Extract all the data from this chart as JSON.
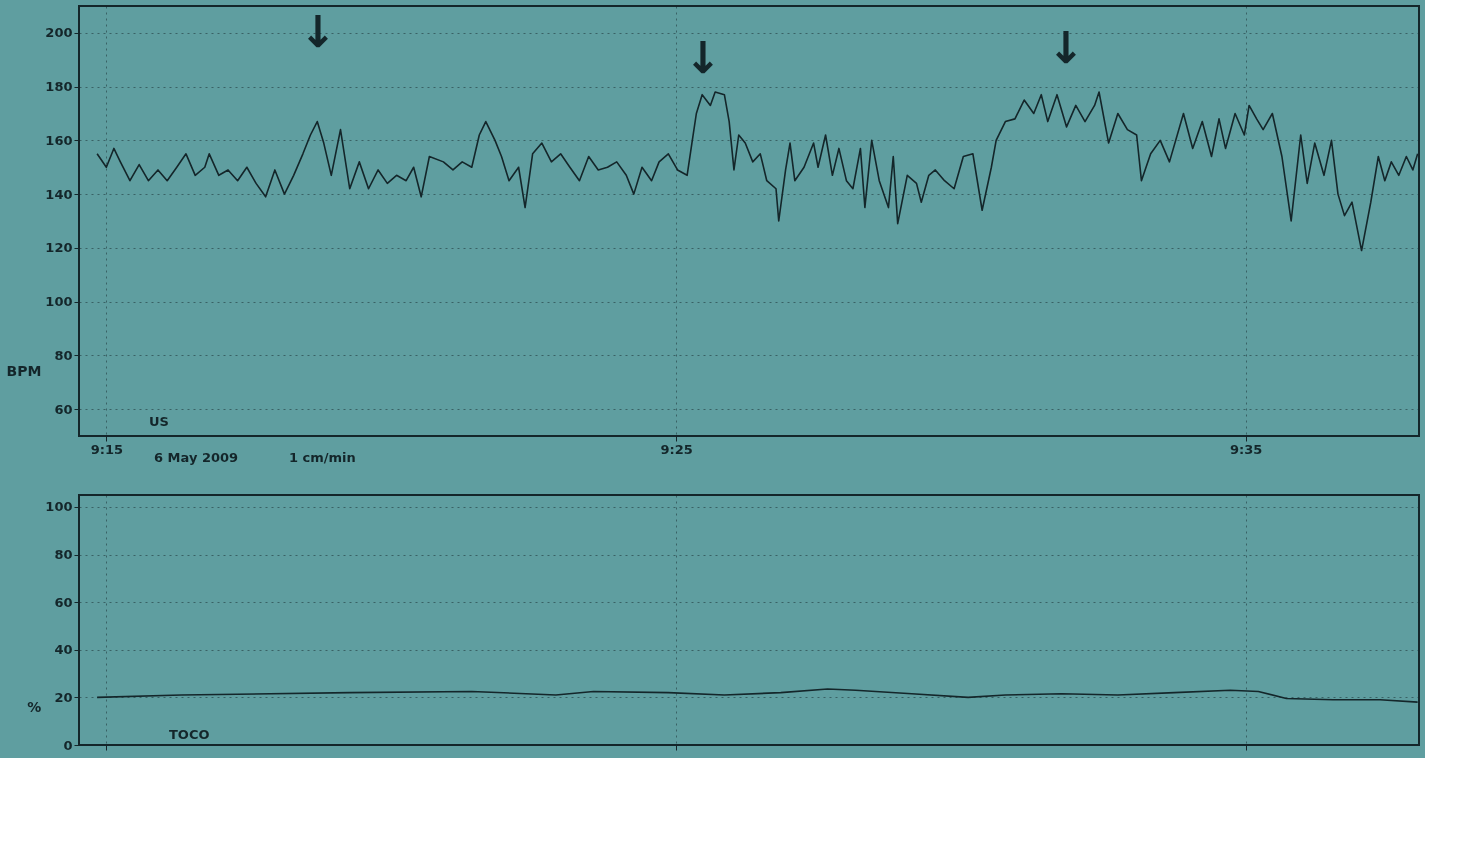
{
  "chart_data": [
    {
      "type": "line",
      "ylabel": "BPM",
      "xlim": [
        9.242,
        9.634
      ],
      "ylim": [
        50,
        210
      ],
      "xticks": [
        {
          "value": 9.25,
          "label": "9:15"
        },
        {
          "value": 9.4167,
          "label": "9:25"
        },
        {
          "value": 9.5833,
          "label": "9:35"
        }
      ],
      "yticks": [
        60,
        80,
        100,
        120,
        140,
        160,
        180,
        200
      ],
      "grid": true,
      "annotations": [
        "US",
        "6 May 2009",
        "1 cm/min",
        "↓",
        "↓",
        "↓"
      ],
      "series": [
        {
          "color": "#14262a",
          "x": [
            9.2473,
            9.25,
            9.2522,
            9.2541,
            9.2569,
            9.2596,
            9.2623,
            9.2651,
            9.2678,
            9.2706,
            9.2733,
            9.276,
            9.2788,
            9.2801,
            9.2829,
            9.2856,
            9.2884,
            9.2911,
            9.2938,
            9.2966,
            9.2993,
            9.3021,
            9.3048,
            9.3075,
            9.3097,
            9.3117,
            9.3136,
            9.3158,
            9.3185,
            9.3212,
            9.324,
            9.3267,
            9.3295,
            9.3322,
            9.3349,
            9.3377,
            9.3399,
            9.3421,
            9.3445,
            9.3486,
            9.3514,
            9.3541,
            9.3569,
            9.3591,
            9.361,
            9.3637,
            9.3656,
            9.3678,
            9.3706,
            9.3725,
            9.3747,
            9.3774,
            9.3802,
            9.3829,
            9.3856,
            9.3884,
            9.3911,
            9.3939,
            9.3966,
            9.3993,
            9.4021,
            9.4043,
            9.4067,
            9.4095,
            9.4117,
            9.4144,
            9.4171,
            9.4199,
            9.4213,
            9.4226,
            9.4243,
            9.4267,
            9.4281,
            9.4308,
            9.4322,
            9.4336,
            9.435,
            9.4369,
            9.4391,
            9.4413,
            9.4432,
            9.4459,
            9.4467,
            9.4487,
            9.45,
            9.4514,
            9.4541,
            9.4569,
            9.4582,
            9.4604,
            9.4624,
            9.4643,
            9.4665,
            9.4684,
            9.4706,
            9.4719,
            9.4739,
            9.4761,
            9.4788,
            9.4802,
            9.4815,
            9.4843,
            9.487,
            9.4884,
            9.4906,
            9.4925,
            9.4952,
            9.498,
            9.5007,
            9.5035,
            9.5062,
            9.5089,
            9.5103,
            9.513,
            9.5158,
            9.5185,
            9.5213,
            9.5235,
            9.5254,
            9.5281,
            9.5309,
            9.5336,
            9.5363,
            9.5391,
            9.5404,
            9.5432,
            9.5459,
            9.5487,
            9.5514,
            9.5528,
            9.5555,
            9.5583,
            9.561,
            9.5651,
            9.5678,
            9.5706,
            9.5733,
            9.5755,
            9.5774,
            9.5802,
            9.5829,
            9.5843,
            9.5865,
            9.5884,
            9.5911,
            9.5939,
            9.5966,
            9.5994,
            9.6013,
            9.6035,
            9.6062,
            9.6084,
            9.6103,
            9.6122,
            9.6144,
            9.6172,
            9.6199,
            9.6221,
            9.624,
            9.6259,
            9.6281,
            9.6303,
            9.6322,
            9.6336
          ],
          "values": [
            155,
            150,
            157,
            152,
            145,
            151,
            145,
            149,
            145,
            150,
            155,
            147,
            150,
            155,
            147,
            149,
            145,
            150,
            144,
            139,
            149,
            140,
            147,
            155,
            162,
            167,
            159,
            147,
            164,
            142,
            152,
            142,
            149,
            144,
            147,
            145,
            150,
            139,
            154,
            152,
            149,
            152,
            150,
            162,
            167,
            160,
            154,
            145,
            150,
            135,
            155,
            159,
            152,
            155,
            150,
            145,
            154,
            149,
            150,
            152,
            147,
            140,
            150,
            145,
            152,
            155,
            149,
            147,
            159,
            170,
            177,
            173,
            178,
            177,
            167,
            149,
            162,
            159,
            152,
            155,
            145,
            142,
            130,
            149,
            159,
            145,
            150,
            159,
            150,
            162,
            147,
            157,
            145,
            142,
            157,
            135,
            160,
            145,
            135,
            154,
            129,
            147,
            144,
            137,
            147,
            149,
            145,
            142,
            154,
            155,
            134,
            150,
            160,
            167,
            168,
            175,
            170,
            177,
            167,
            177,
            165,
            173,
            167,
            173,
            178,
            159,
            170,
            164,
            162,
            145,
            155,
            160,
            152,
            170,
            157,
            167,
            154,
            168,
            157,
            170,
            162,
            173,
            168,
            164,
            170,
            154,
            130,
            162,
            144,
            159,
            147,
            160,
            140,
            132,
            137,
            119,
            137,
            154,
            145,
            152,
            147,
            154,
            149,
            155
          ]
        }
      ]
    },
    {
      "type": "line",
      "ylabel": "%",
      "xlim": [
        9.242,
        9.634
      ],
      "ylim": [
        0,
        105
      ],
      "yticks": [
        0,
        20,
        40,
        60,
        80,
        100
      ],
      "grid": true,
      "tick_labels": "y",
      "xticks": [
        {
          "value": 9.25,
          "label": null
        },
        {
          "value": 9.4167,
          "label": null
        },
        {
          "value": 9.5833,
          "label": null
        }
      ],
      "annotations": [
        "TOCO"
      ],
      "series": [
        {
          "color": "#14262a",
          "x": [
            9.2473,
            9.2719,
            9.3212,
            9.3569,
            9.3815,
            9.3925,
            9.4144,
            9.4308,
            9.4473,
            9.461,
            9.4692,
            9.4856,
            9.5021,
            9.513,
            9.5295,
            9.5459,
            9.5624,
            9.5788,
            9.587,
            9.5952,
            9.6089,
            9.6226,
            9.6336
          ],
          "values": [
            20,
            21,
            22,
            22.5,
            21,
            22.5,
            22,
            21,
            22,
            23.5,
            23,
            21.5,
            20,
            21,
            21.5,
            21,
            22,
            23,
            22.5,
            19.5,
            19,
            19,
            18
          ]
        }
      ]
    }
  ]
}
